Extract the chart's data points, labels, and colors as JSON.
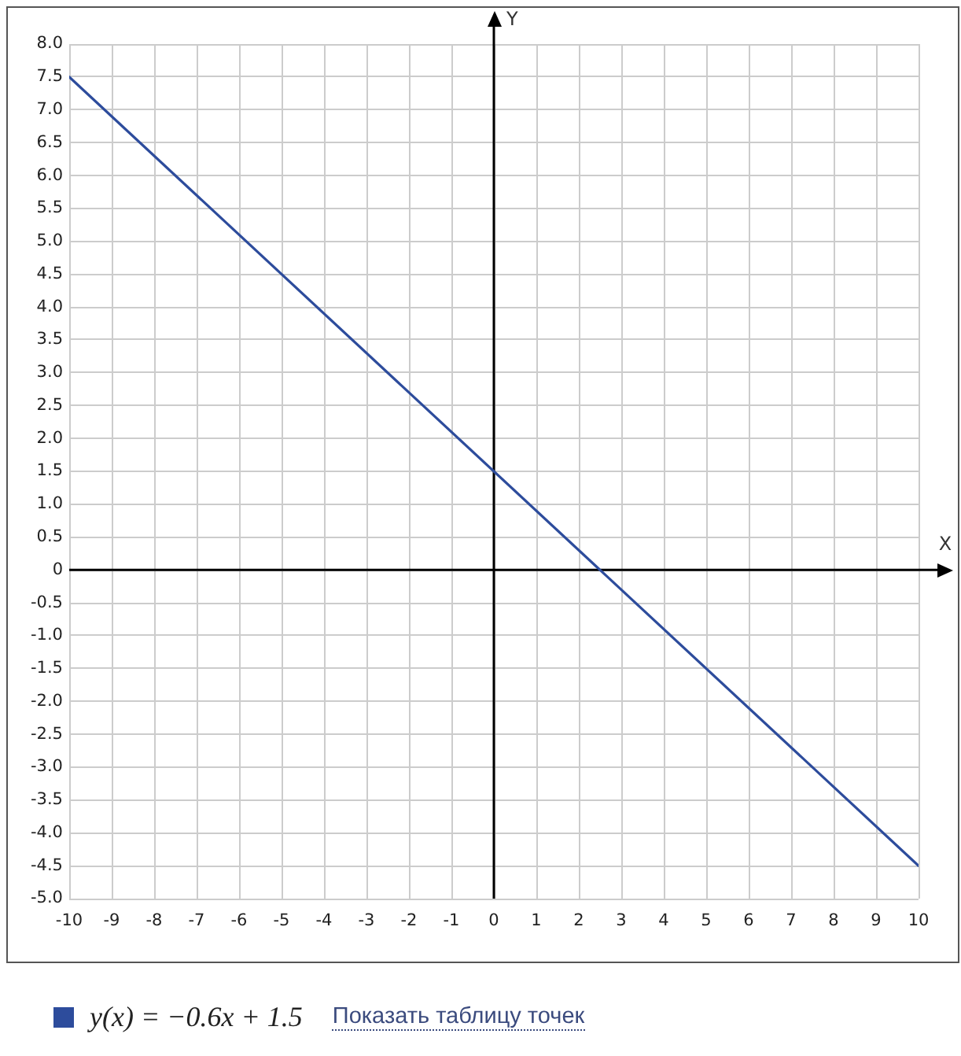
{
  "chart_data": {
    "type": "line",
    "xlabel": "X",
    "ylabel": "Y",
    "x": [
      -10,
      10
    ],
    "series": [
      {
        "name": "y(x) = −0.6x + 1.5",
        "color": "#2d4c9c",
        "values": [
          7.5,
          -4.5
        ]
      }
    ],
    "xlim": [
      -10,
      10
    ],
    "ylim": [
      -5,
      8
    ],
    "xticks": [
      -10,
      -9,
      -8,
      -7,
      -6,
      -5,
      -4,
      -3,
      -2,
      -1,
      0,
      1,
      2,
      3,
      4,
      5,
      6,
      7,
      8,
      9,
      10
    ],
    "yticks": [
      {
        "value": -5,
        "label": "-5.0"
      },
      -4.5,
      {
        "value": -4,
        "label": "-4.0"
      },
      -3.5,
      {
        "value": -3,
        "label": "-3.0"
      },
      -2.5,
      {
        "value": -2,
        "label": "-2.0"
      },
      -1.5,
      {
        "value": -1,
        "label": "-1.0"
      },
      -0.5,
      0,
      0.5,
      {
        "value": 1,
        "label": "1.0"
      },
      1.5,
      {
        "value": 2,
        "label": "2.0"
      },
      2.5,
      {
        "value": 3,
        "label": "3.0"
      },
      3.5,
      {
        "value": 4,
        "label": "4.0"
      },
      4.5,
      {
        "value": 5,
        "label": "5.0"
      },
      5.5,
      {
        "value": 6,
        "label": "6.0"
      },
      6.5,
      {
        "value": 7,
        "label": "7.0"
      },
      7.5,
      {
        "value": 8,
        "label": "8.0"
      }
    ],
    "grid": true,
    "legend": "bottom left",
    "annotations": [
      "Показать таблицу точек"
    ]
  }
}
